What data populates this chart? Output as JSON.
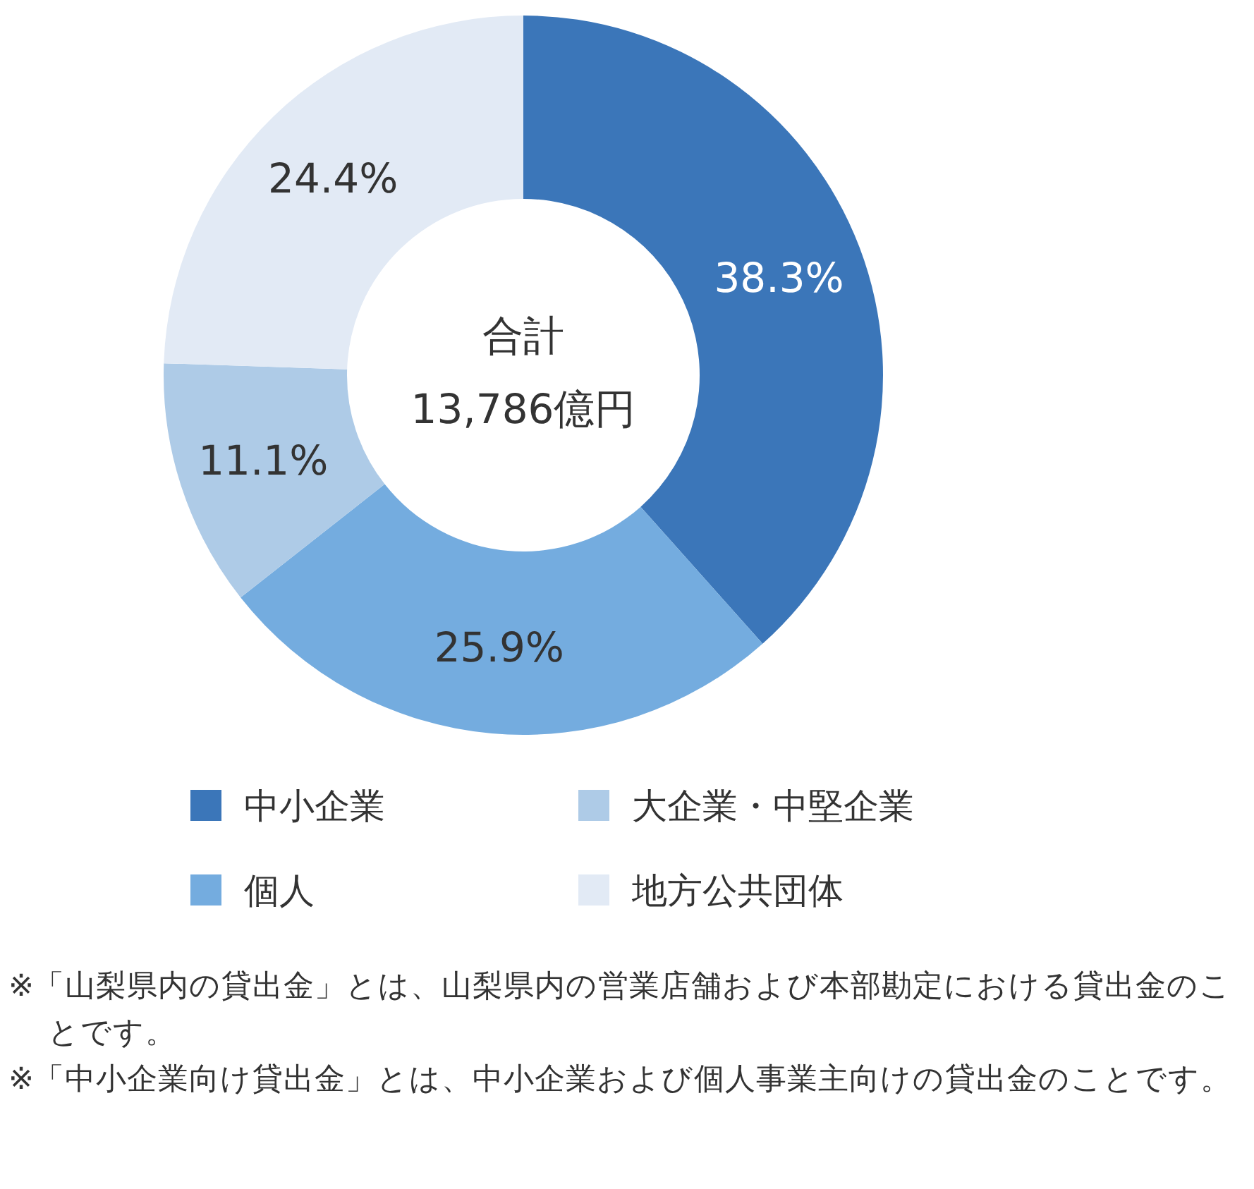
{
  "chart_data": {
    "type": "donut",
    "categories": [
      "中小企業",
      "個人",
      "大企業・中堅企業",
      "地方公共団体"
    ],
    "values": [
      38.3,
      25.9,
      11.1,
      24.4
    ],
    "colors": [
      "#3b76b9",
      "#74acdf",
      "#aecbe7",
      "#e2eaf5"
    ],
    "value_labels": [
      "38.3%",
      "25.9%",
      "11.1%",
      "24.4%"
    ],
    "legend": "bottom",
    "annotations": [
      "合計",
      "13,786億円",
      "※「山梨県内の貸出金」とは、山梨県内の営業店舗および本部勘定における貸出金のことです。",
      "※「中小企業向け貸出金」とは、中小企業および個人事業主向けの貸出金のことです。"
    ]
  }
}
